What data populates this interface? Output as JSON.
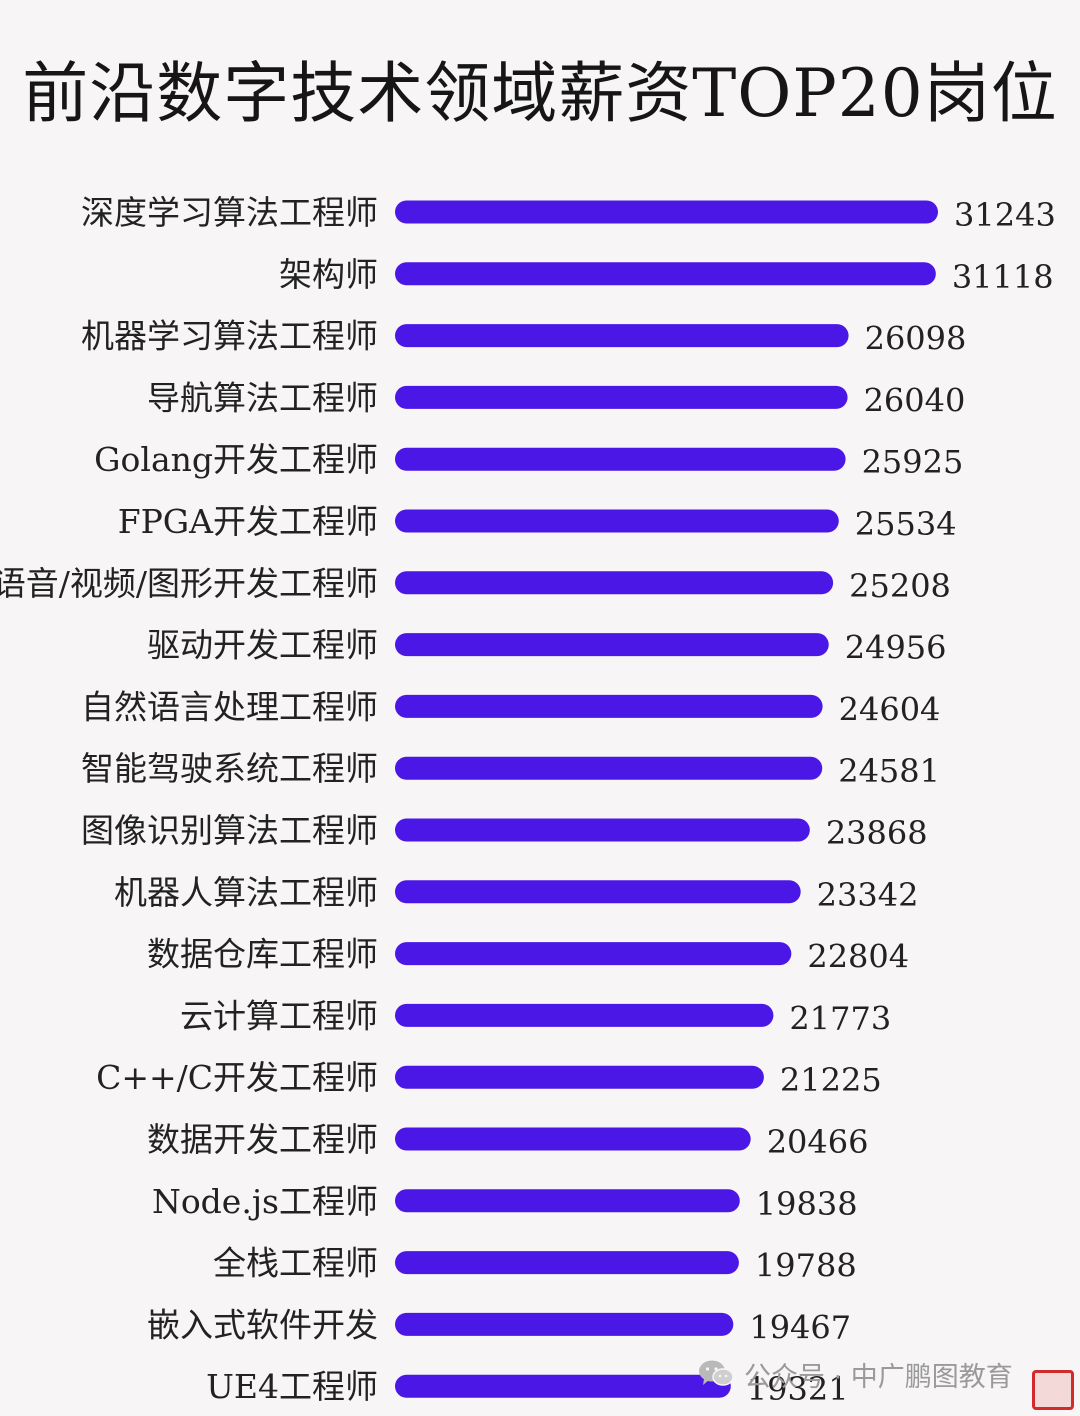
{
  "title": "前沿数字技术领域薪资TOP20岗位",
  "colors": {
    "bar": "#4b17e6",
    "background": "#f7f5f5"
  },
  "chart_data": {
    "type": "bar",
    "orientation": "horizontal",
    "title": "前沿数字技术领域薪资TOP20岗位",
    "xlabel": "",
    "ylabel": "",
    "grid": false,
    "legend": "none",
    "categories": [
      "深度学习算法工程师",
      "架构师",
      "机器学习算法工程师",
      "导航算法工程师",
      "Golang开发工程师",
      "FPGA开发工程师",
      "语音/视频/图形开发工程师",
      "驱动开发工程师",
      "自然语言处理工程师",
      "智能驾驶系统工程师",
      "图像识别算法工程师",
      "机器人算法工程师",
      "数据仓库工程师",
      "云计算工程师",
      "C++/C开发工程师",
      "数据开发工程师",
      "Node.js工程师",
      "全栈工程师",
      "嵌入式软件开发",
      "UE4工程师"
    ],
    "values": [
      31243,
      31118,
      26098,
      26040,
      25925,
      25534,
      25208,
      24956,
      24604,
      24581,
      23868,
      23342,
      22804,
      21773,
      21225,
      20466,
      19838,
      19788,
      19467,
      19321
    ]
  },
  "watermark": {
    "icon": "wechat-icon",
    "text": "公众号 · 中广鹏图教育"
  },
  "seal": {
    "icon": "red-seal-stamp"
  }
}
